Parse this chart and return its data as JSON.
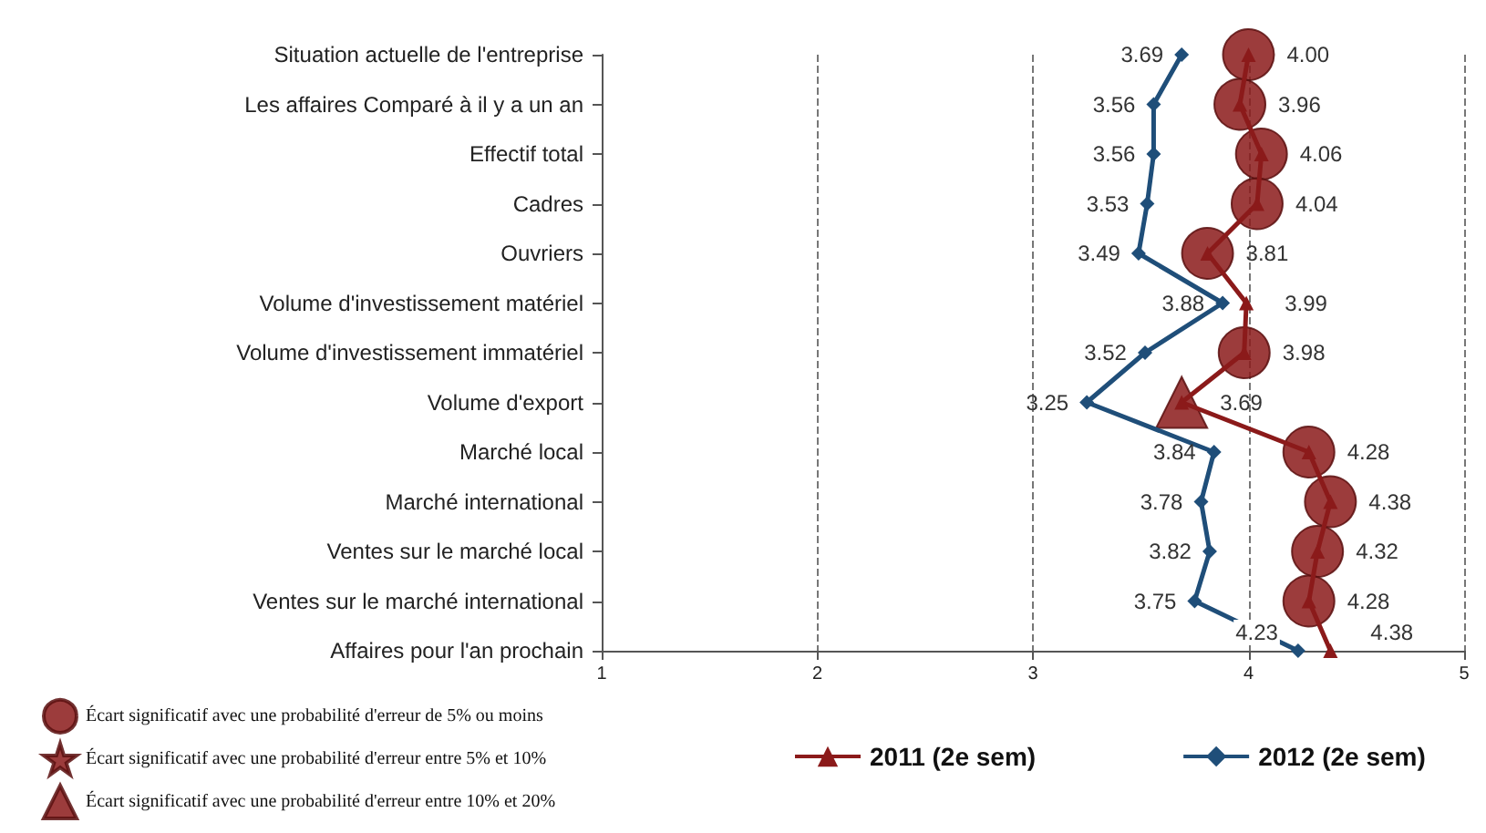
{
  "chart_data": {
    "type": "line",
    "orientation": "horizontal",
    "categories": [
      "Situation actuelle de l'entreprise",
      "Les affaires Comparé à il y a un an",
      "Effectif total",
      "Cadres",
      "Ouvriers",
      "Volume d'investissement matériel",
      "Volume d'investissement immatériel",
      "Volume d'export",
      "Marché local",
      "Marché international",
      "Ventes sur le marché local",
      "Ventes sur le marché international",
      "Affaires pour l'an prochain"
    ],
    "series": [
      {
        "name": "2011 (2e sem)",
        "color": "#8b1a1a",
        "marker": "triangle",
        "values": [
          4.0,
          3.96,
          4.06,
          4.04,
          3.81,
          3.99,
          3.98,
          3.69,
          4.28,
          4.38,
          4.32,
          4.28,
          4.38
        ],
        "value_labels": [
          "4.00",
          "3.96",
          "4.06",
          "4.04",
          "3.81",
          "3.99",
          "3.98",
          "3.69",
          "4.28",
          "4.38",
          "4.32",
          "4.28",
          "4.38"
        ]
      },
      {
        "name": "2012 (2e sem)",
        "color": "#1f4e79",
        "marker": "diamond",
        "values": [
          3.69,
          3.56,
          3.56,
          3.53,
          3.49,
          3.88,
          3.52,
          3.25,
          3.84,
          3.78,
          3.82,
          3.75,
          4.23
        ],
        "value_labels": [
          "3.69",
          "3.56",
          "3.56",
          "3.53",
          "3.49",
          "3.88",
          "3.52",
          "3.25",
          "3.84",
          "3.78",
          "3.82",
          "3.75",
          "4.23"
        ]
      },
      {
        "name": "Écart significatif avec une probabilité d'erreur de 5% ou moins",
        "type": "scatter",
        "color": "#8b1a1a",
        "marker": "circle",
        "values": [
          4.0,
          3.96,
          4.06,
          4.04,
          3.81,
          null,
          3.98,
          null,
          4.28,
          4.38,
          4.32,
          4.28,
          null
        ]
      },
      {
        "name": "Écart significatif avec une probabilité d'erreur entre 5% et 10%",
        "type": "scatter",
        "color": "#8b1a1a",
        "marker": "star",
        "values": [
          null,
          null,
          null,
          null,
          null,
          null,
          null,
          null,
          null,
          null,
          null,
          null,
          null
        ]
      },
      {
        "name": "Écart significatif avec une probabilité d'erreur entre 10% et 20%",
        "type": "scatter",
        "color": "#8b1a1a",
        "marker": "triangle",
        "values": [
          null,
          null,
          null,
          null,
          null,
          null,
          null,
          3.69,
          null,
          null,
          null,
          null,
          null
        ]
      }
    ],
    "xlim": [
      1,
      5
    ],
    "xticks": [
      1,
      2,
      3,
      4,
      5
    ],
    "grid": "x",
    "legend": "bottom"
  }
}
